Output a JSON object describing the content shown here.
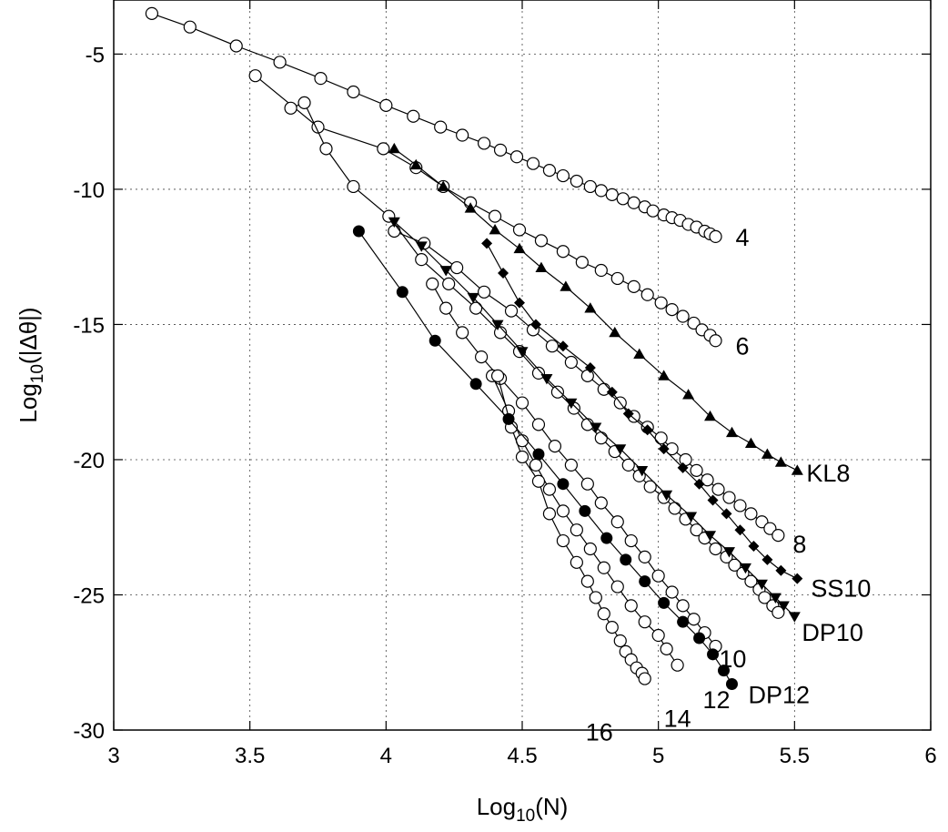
{
  "chart_data": {
    "type": "line",
    "xlabel": "Log10(N)",
    "ylabel": "Log10(|Δθ|)",
    "xlim": [
      3,
      6
    ],
    "ylim": [
      -30,
      -3
    ],
    "grid": true,
    "x_ticks": [
      3,
      3.5,
      4,
      4.5,
      5,
      5.5,
      6
    ],
    "x_tick_labels": [
      "3",
      "3.5",
      "4",
      "4.5",
      "5",
      "5.5",
      "6"
    ],
    "y_ticks": [
      -30,
      -25,
      -20,
      -15,
      -10,
      -5
    ],
    "y_tick_labels": [
      "-30",
      "-25",
      "-20",
      "-15",
      "-10",
      "-5"
    ],
    "series": [
      {
        "name": "4",
        "marker": "open-circle",
        "points": [
          [
            3.14,
            -3.5
          ],
          [
            3.28,
            -4.0
          ],
          [
            3.45,
            -4.7
          ],
          [
            3.61,
            -5.3
          ],
          [
            3.76,
            -5.9
          ],
          [
            3.88,
            -6.4
          ],
          [
            4.0,
            -6.9
          ],
          [
            4.1,
            -7.3
          ],
          [
            4.2,
            -7.7
          ],
          [
            4.28,
            -8.0
          ],
          [
            4.36,
            -8.3
          ],
          [
            4.42,
            -8.55
          ],
          [
            4.48,
            -8.8
          ],
          [
            4.54,
            -9.05
          ],
          [
            4.6,
            -9.3
          ],
          [
            4.65,
            -9.5
          ],
          [
            4.7,
            -9.7
          ],
          [
            4.75,
            -9.9
          ],
          [
            4.79,
            -10.05
          ],
          [
            4.83,
            -10.2
          ],
          [
            4.87,
            -10.35
          ],
          [
            4.91,
            -10.5
          ],
          [
            4.95,
            -10.65
          ],
          [
            4.98,
            -10.8
          ],
          [
            5.02,
            -10.95
          ],
          [
            5.05,
            -11.05
          ],
          [
            5.08,
            -11.15
          ],
          [
            5.11,
            -11.3
          ],
          [
            5.14,
            -11.4
          ],
          [
            5.17,
            -11.55
          ],
          [
            5.19,
            -11.65
          ],
          [
            5.21,
            -11.75
          ]
        ]
      },
      {
        "name": "6",
        "marker": "open-circle",
        "points": [
          [
            3.52,
            -5.8
          ],
          [
            3.75,
            -7.7
          ],
          [
            3.99,
            -8.5
          ],
          [
            4.11,
            -9.2
          ],
          [
            4.21,
            -9.9
          ],
          [
            4.31,
            -10.5
          ],
          [
            4.4,
            -11.0
          ],
          [
            4.49,
            -11.5
          ],
          [
            4.57,
            -11.9
          ],
          [
            4.65,
            -12.3
          ],
          [
            4.72,
            -12.7
          ],
          [
            4.79,
            -13.0
          ],
          [
            4.85,
            -13.3
          ],
          [
            4.91,
            -13.6
          ],
          [
            4.96,
            -13.9
          ],
          [
            5.01,
            -14.2
          ],
          [
            5.05,
            -14.45
          ],
          [
            5.09,
            -14.7
          ],
          [
            5.13,
            -14.95
          ],
          [
            5.16,
            -15.2
          ],
          [
            5.19,
            -15.4
          ],
          [
            5.21,
            -15.6
          ]
        ]
      },
      {
        "name": "8",
        "marker": "open-circle",
        "points": [
          [
            4.03,
            -11.55
          ],
          [
            4.14,
            -12.0
          ],
          [
            4.26,
            -12.9
          ],
          [
            4.36,
            -13.8
          ],
          [
            4.46,
            -14.5
          ],
          [
            4.54,
            -15.2
          ],
          [
            4.61,
            -15.8
          ],
          [
            4.68,
            -16.4
          ],
          [
            4.74,
            -16.9
          ],
          [
            4.8,
            -17.4
          ],
          [
            4.86,
            -17.9
          ],
          [
            4.91,
            -18.4
          ],
          [
            4.96,
            -18.8
          ],
          [
            5.01,
            -19.2
          ],
          [
            5.05,
            -19.6
          ],
          [
            5.1,
            -20.0
          ],
          [
            5.14,
            -20.4
          ],
          [
            5.18,
            -20.75
          ],
          [
            5.22,
            -21.1
          ],
          [
            5.26,
            -21.4
          ],
          [
            5.3,
            -21.7
          ],
          [
            5.34,
            -22.0
          ],
          [
            5.38,
            -22.3
          ],
          [
            5.41,
            -22.55
          ],
          [
            5.44,
            -22.8
          ]
        ]
      },
      {
        "name": "10",
        "marker": "open-circle",
        "points": [
          [
            3.65,
            -7.0
          ],
          [
            3.7,
            -6.8
          ],
          [
            3.78,
            -8.5
          ],
          [
            3.88,
            -9.9
          ],
          [
            4.01,
            -11.0
          ],
          [
            4.13,
            -12.6
          ],
          [
            4.23,
            -13.5
          ],
          [
            4.33,
            -14.4
          ],
          [
            4.42,
            -15.3
          ],
          [
            4.49,
            -16.0
          ],
          [
            4.56,
            -16.8
          ],
          [
            4.63,
            -17.5
          ],
          [
            4.69,
            -18.1
          ],
          [
            4.74,
            -18.7
          ],
          [
            4.79,
            -19.2
          ],
          [
            4.84,
            -19.7
          ],
          [
            4.89,
            -20.2
          ],
          [
            4.93,
            -20.6
          ],
          [
            4.97,
            -21.0
          ],
          [
            5.02,
            -21.4
          ],
          [
            5.06,
            -21.8
          ],
          [
            5.1,
            -22.2
          ],
          [
            5.14,
            -22.6
          ],
          [
            5.17,
            -22.9
          ],
          [
            5.21,
            -23.3
          ],
          [
            5.25,
            -23.6
          ],
          [
            5.28,
            -23.9
          ],
          [
            5.31,
            -24.2
          ],
          [
            5.34,
            -24.5
          ],
          [
            5.37,
            -24.8
          ],
          [
            5.39,
            -25.1
          ],
          [
            5.42,
            -25.4
          ],
          [
            5.44,
            -25.65
          ]
        ]
      },
      {
        "name": "12",
        "marker": "open-circle",
        "points": [
          [
            4.17,
            -13.5
          ],
          [
            4.22,
            -14.4
          ],
          [
            4.28,
            -15.3
          ],
          [
            4.35,
            -16.2
          ],
          [
            4.42,
            -17.0
          ],
          [
            4.5,
            -17.9
          ],
          [
            4.56,
            -18.7
          ],
          [
            4.62,
            -19.5
          ],
          [
            4.68,
            -20.2
          ],
          [
            4.74,
            -20.9
          ],
          [
            4.79,
            -21.6
          ],
          [
            4.85,
            -22.3
          ],
          [
            4.9,
            -23.0
          ],
          [
            4.95,
            -23.6
          ],
          [
            5.0,
            -24.3
          ],
          [
            5.05,
            -24.9
          ],
          [
            5.09,
            -25.4
          ],
          [
            5.13,
            -25.9
          ],
          [
            5.17,
            -26.4
          ],
          [
            5.21,
            -26.9
          ]
        ]
      },
      {
        "name": "14",
        "marker": "open-circle",
        "points": [
          [
            4.39,
            -16.9
          ],
          [
            4.45,
            -18.2
          ],
          [
            4.5,
            -19.3
          ],
          [
            4.55,
            -20.2
          ],
          [
            4.6,
            -21.1
          ],
          [
            4.65,
            -21.9
          ],
          [
            4.7,
            -22.6
          ],
          [
            4.75,
            -23.3
          ],
          [
            4.8,
            -24.0
          ],
          [
            4.85,
            -24.7
          ],
          [
            4.9,
            -25.4
          ],
          [
            4.95,
            -26.0
          ],
          [
            5.0,
            -26.5
          ],
          [
            5.03,
            -27.0
          ],
          [
            5.07,
            -27.6
          ]
        ]
      },
      {
        "name": "16",
        "marker": "open-circle",
        "points": [
          [
            4.41,
            -16.9
          ],
          [
            4.46,
            -18.8
          ],
          [
            4.5,
            -19.9
          ],
          [
            4.56,
            -20.8
          ],
          [
            4.6,
            -22.0
          ],
          [
            4.65,
            -23.0
          ],
          [
            4.7,
            -23.8
          ],
          [
            4.74,
            -24.5
          ],
          [
            4.77,
            -25.1
          ],
          [
            4.8,
            -25.7
          ],
          [
            4.83,
            -26.2
          ],
          [
            4.86,
            -26.7
          ],
          [
            4.88,
            -27.1
          ],
          [
            4.9,
            -27.4
          ],
          [
            4.92,
            -27.7
          ],
          [
            4.94,
            -27.9
          ],
          [
            4.95,
            -28.1
          ]
        ]
      },
      {
        "name": "KL8",
        "marker": "filled-triangle-up",
        "points": [
          [
            4.03,
            -8.5
          ],
          [
            4.11,
            -9.1
          ],
          [
            4.21,
            -9.9
          ],
          [
            4.31,
            -10.7
          ],
          [
            4.4,
            -11.5
          ],
          [
            4.49,
            -12.2
          ],
          [
            4.57,
            -12.9
          ],
          [
            4.66,
            -13.6
          ],
          [
            4.75,
            -14.4
          ],
          [
            4.84,
            -15.3
          ],
          [
            4.93,
            -16.1
          ],
          [
            5.02,
            -16.9
          ],
          [
            5.11,
            -17.6
          ],
          [
            5.19,
            -18.4
          ],
          [
            5.27,
            -19.0
          ],
          [
            5.34,
            -19.4
          ],
          [
            5.4,
            -19.8
          ],
          [
            5.45,
            -20.1
          ],
          [
            5.51,
            -20.4
          ]
        ]
      },
      {
        "name": "SS10",
        "marker": "filled-diamond",
        "points": [
          [
            4.37,
            -12.0
          ],
          [
            4.43,
            -13.1
          ],
          [
            4.49,
            -14.2
          ],
          [
            4.55,
            -15.0
          ],
          [
            4.65,
            -15.8
          ],
          [
            4.75,
            -16.6
          ],
          [
            4.83,
            -17.5
          ],
          [
            4.89,
            -18.3
          ],
          [
            4.96,
            -18.9
          ],
          [
            5.02,
            -19.6
          ],
          [
            5.09,
            -20.3
          ],
          [
            5.15,
            -20.9
          ],
          [
            5.2,
            -21.5
          ],
          [
            5.25,
            -22.0
          ],
          [
            5.3,
            -22.6
          ],
          [
            5.35,
            -23.2
          ],
          [
            5.4,
            -23.7
          ],
          [
            5.45,
            -24.1
          ],
          [
            5.51,
            -24.4
          ]
        ]
      },
      {
        "name": "DP10",
        "marker": "filled-triangle-down",
        "points": [
          [
            4.03,
            -11.2
          ],
          [
            4.13,
            -12.1
          ],
          [
            4.22,
            -13.0
          ],
          [
            4.32,
            -14.0
          ],
          [
            4.41,
            -15.0
          ],
          [
            4.5,
            -16.0
          ],
          [
            4.59,
            -17.0
          ],
          [
            4.68,
            -17.9
          ],
          [
            4.77,
            -18.8
          ],
          [
            4.86,
            -19.6
          ],
          [
            4.94,
            -20.4
          ],
          [
            5.03,
            -21.3
          ],
          [
            5.12,
            -22.1
          ],
          [
            5.19,
            -22.8
          ],
          [
            5.26,
            -23.4
          ],
          [
            5.32,
            -24.0
          ],
          [
            5.38,
            -24.6
          ],
          [
            5.43,
            -25.1
          ],
          [
            5.46,
            -25.4
          ],
          [
            5.5,
            -25.8
          ]
        ]
      },
      {
        "name": "DP12",
        "marker": "filled-circle",
        "points": [
          [
            3.9,
            -11.55
          ],
          [
            4.06,
            -13.8
          ],
          [
            4.18,
            -15.6
          ],
          [
            4.33,
            -17.2
          ],
          [
            4.45,
            -18.5
          ],
          [
            4.56,
            -19.8
          ],
          [
            4.65,
            -20.9
          ],
          [
            4.73,
            -21.9
          ],
          [
            4.81,
            -22.9
          ],
          [
            4.88,
            -23.7
          ],
          [
            4.95,
            -24.5
          ],
          [
            5.02,
            -25.3
          ],
          [
            5.09,
            -26.0
          ],
          [
            5.15,
            -26.6
          ],
          [
            5.2,
            -27.2
          ],
          [
            5.24,
            -27.8
          ],
          [
            5.27,
            -28.3
          ]
        ]
      }
    ]
  }
}
